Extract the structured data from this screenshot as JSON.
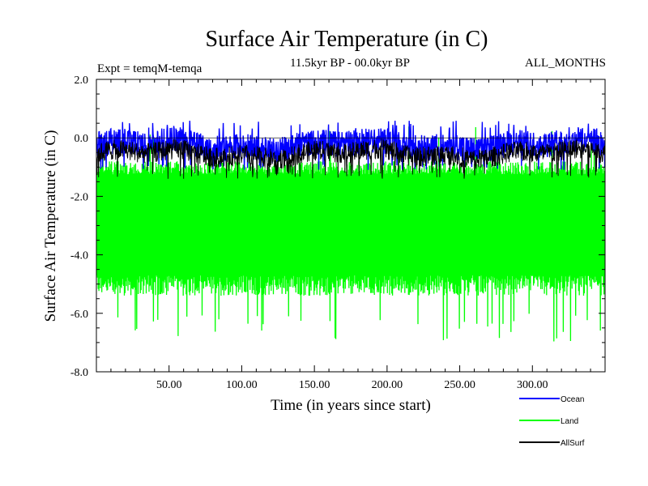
{
  "chart_data": {
    "type": "line",
    "title": "Surface Air Temperature (in C)",
    "subtitle": "11.5kyr BP - 00.0kyr BP",
    "left_label": "Expt = temqM-temqa",
    "right_label": "ALL_MONTHS",
    "xlabel": "Time (in years since start)",
    "ylabel": "Surface Air Temperature (in C)",
    "xlim": [
      0,
      350
    ],
    "ylim": [
      -8,
      2
    ],
    "xticks": [
      50,
      100,
      150,
      200,
      250,
      300
    ],
    "xtick_labels": [
      "50.00",
      "100.00",
      "150.00",
      "200.00",
      "250.00",
      "300.00"
    ],
    "yticks": [
      2,
      0,
      -2,
      -4,
      -6,
      -8
    ],
    "ytick_labels": [
      "2.0",
      "0.0",
      "-2.0",
      "-4.0",
      "-6.0",
      "-8.0"
    ],
    "legend_position": "bottom-right, outside plot",
    "series": [
      {
        "name": "Land",
        "color": "#00ff00",
        "mean": -2.9,
        "band_high": -0.8,
        "band_low": -5.4,
        "peak_high": 0.4,
        "peak_low": -7.0
      },
      {
        "name": "Ocean",
        "color": "#0000ff",
        "mean": -0.25,
        "band_high": 0.2,
        "band_low": -0.8,
        "peak_high": 0.6,
        "peak_low": -1.1
      },
      {
        "name": "AllSurf",
        "color": "#000000",
        "mean": -0.55,
        "band_high": -0.1,
        "band_low": -1.0,
        "peak_high": 0.1,
        "peak_low": -1.4
      }
    ],
    "legend": [
      {
        "name": "Ocean",
        "color": "#0000ff"
      },
      {
        "name": "Land",
        "color": "#00ff00"
      },
      {
        "name": "AllSurf",
        "color": "#000000"
      }
    ]
  }
}
